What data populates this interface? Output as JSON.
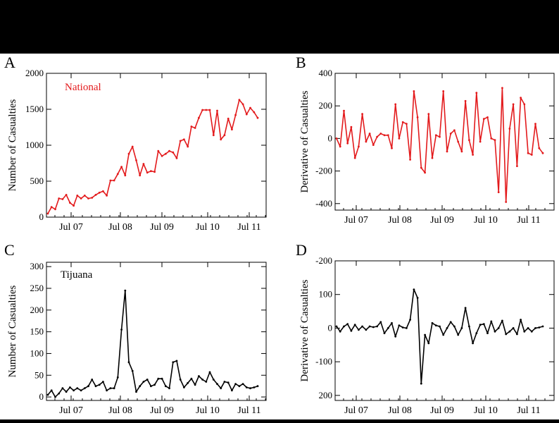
{
  "panels": [
    {
      "letter": "A",
      "ylabel": "Number of Casualties",
      "annotation": "National",
      "color": "#e31a1c",
      "yticks": [
        0,
        500,
        1000,
        1500,
        2000
      ],
      "ylim": [
        0,
        2000
      ],
      "xticks": [
        "Jul 07",
        "Jul 08",
        "Jul 09",
        "Jul 10",
        "Jul 11"
      ]
    },
    {
      "letter": "B",
      "ylabel": "Derivative of Casualties",
      "annotation": "",
      "color": "#e31a1c",
      "yticks": [
        -400,
        -200,
        0,
        200,
        400
      ],
      "ylim": [
        -440,
        400
      ],
      "xticks": [
        "Jul 07",
        "Jul 08",
        "Jul 09",
        "Jul 10",
        "Jul 11"
      ]
    },
    {
      "letter": "C",
      "ylabel": "Number of Casualties",
      "annotation": "Tijuana",
      "color": "#000000",
      "yticks": [
        0,
        50,
        100,
        150,
        200,
        250,
        300
      ],
      "ylim": [
        -8,
        310
      ],
      "xticks": [
        "Jul 07",
        "Jul 08",
        "Jul 09",
        "Jul 10",
        "Jul 11"
      ]
    },
    {
      "letter": "D",
      "ylabel": "Derivative of Casualties",
      "annotation": "",
      "color": "#000000",
      "yticks": [
        -200,
        100,
        0,
        -100,
        200
      ],
      "ylim": [
        -215,
        200
      ],
      "xticks": [
        "Jul 07",
        "Jul 08",
        "Jul 09",
        "Jul 10",
        "Jul 11"
      ]
    }
  ],
  "chart_data": [
    {
      "type": "line",
      "panel": "A",
      "xlabel": "",
      "ylabel": "Number of Casualties",
      "ylim": [
        0,
        2000
      ],
      "x_range": [
        "Jan 2007",
        "Jun 2011"
      ],
      "series": [
        {
          "name": "National",
          "values": [
            50,
            140,
            110,
            260,
            250,
            310,
            200,
            160,
            300,
            260,
            300,
            260,
            270,
            310,
            340,
            360,
            300,
            510,
            510,
            600,
            700,
            580,
            880,
            980,
            790,
            580,
            740,
            620,
            640,
            630,
            920,
            850,
            880,
            920,
            900,
            820,
            1060,
            1080,
            980,
            1260,
            1240,
            1380,
            1490,
            1490,
            1490,
            1140,
            1480,
            1080,
            1140,
            1370,
            1220,
            1420,
            1630,
            1570,
            1430,
            1520,
            1460,
            1380
          ]
        }
      ]
    },
    {
      "type": "line",
      "panel": "B",
      "xlabel": "",
      "ylabel": "Derivative of Casualties",
      "ylim": [
        -440,
        400
      ],
      "series": [
        {
          "name": "",
          "values": [
            0,
            -50,
            170,
            -30,
            70,
            -120,
            -50,
            150,
            -20,
            30,
            -40,
            10,
            30,
            20,
            20,
            -60,
            210,
            0,
            100,
            90,
            -130,
            290,
            130,
            -180,
            -210,
            150,
            -120,
            20,
            10,
            290,
            -80,
            30,
            50,
            -20,
            -80,
            230,
            -10,
            -100,
            280,
            -20,
            120,
            130,
            0,
            -10,
            -330,
            310,
            -390,
            60,
            210,
            -170,
            250,
            210,
            -90,
            -100,
            90,
            -60,
            -90
          ]
        }
      ]
    },
    {
      "type": "line",
      "panel": "C",
      "xlabel": "",
      "ylabel": "Number of Casualties",
      "ylim": [
        -8,
        310
      ],
      "series": [
        {
          "name": "Tijuana",
          "values": [
            5,
            15,
            0,
            8,
            20,
            12,
            22,
            15,
            20,
            15,
            20,
            25,
            40,
            25,
            28,
            35,
            15,
            20,
            20,
            45,
            155,
            245,
            80,
            60,
            12,
            25,
            35,
            40,
            25,
            28,
            42,
            42,
            25,
            20,
            80,
            83,
            40,
            22,
            32,
            42,
            28,
            48,
            40,
            35,
            57,
            40,
            30,
            20,
            35,
            33,
            15,
            30,
            25,
            30,
            22,
            20,
            22,
            25
          ]
        }
      ]
    },
    {
      "type": "line",
      "panel": "D",
      "xlabel": "",
      "ylabel": "Derivative of Casualties",
      "ylim": [
        -215,
        200
      ],
      "series": [
        {
          "name": "",
          "values": [
            5,
            -10,
            5,
            12,
            -8,
            10,
            -5,
            5,
            -5,
            5,
            3,
            5,
            18,
            -15,
            0,
            15,
            -25,
            8,
            2,
            0,
            25,
            115,
            90,
            -165,
            -20,
            -45,
            15,
            8,
            5,
            -20,
            0,
            18,
            5,
            -20,
            0,
            60,
            5,
            -45,
            -15,
            10,
            12,
            -15,
            20,
            -10,
            0,
            22,
            -18,
            -10,
            0,
            -18,
            25,
            -10,
            0,
            -10,
            0,
            2,
            5
          ]
        }
      ]
    }
  ]
}
